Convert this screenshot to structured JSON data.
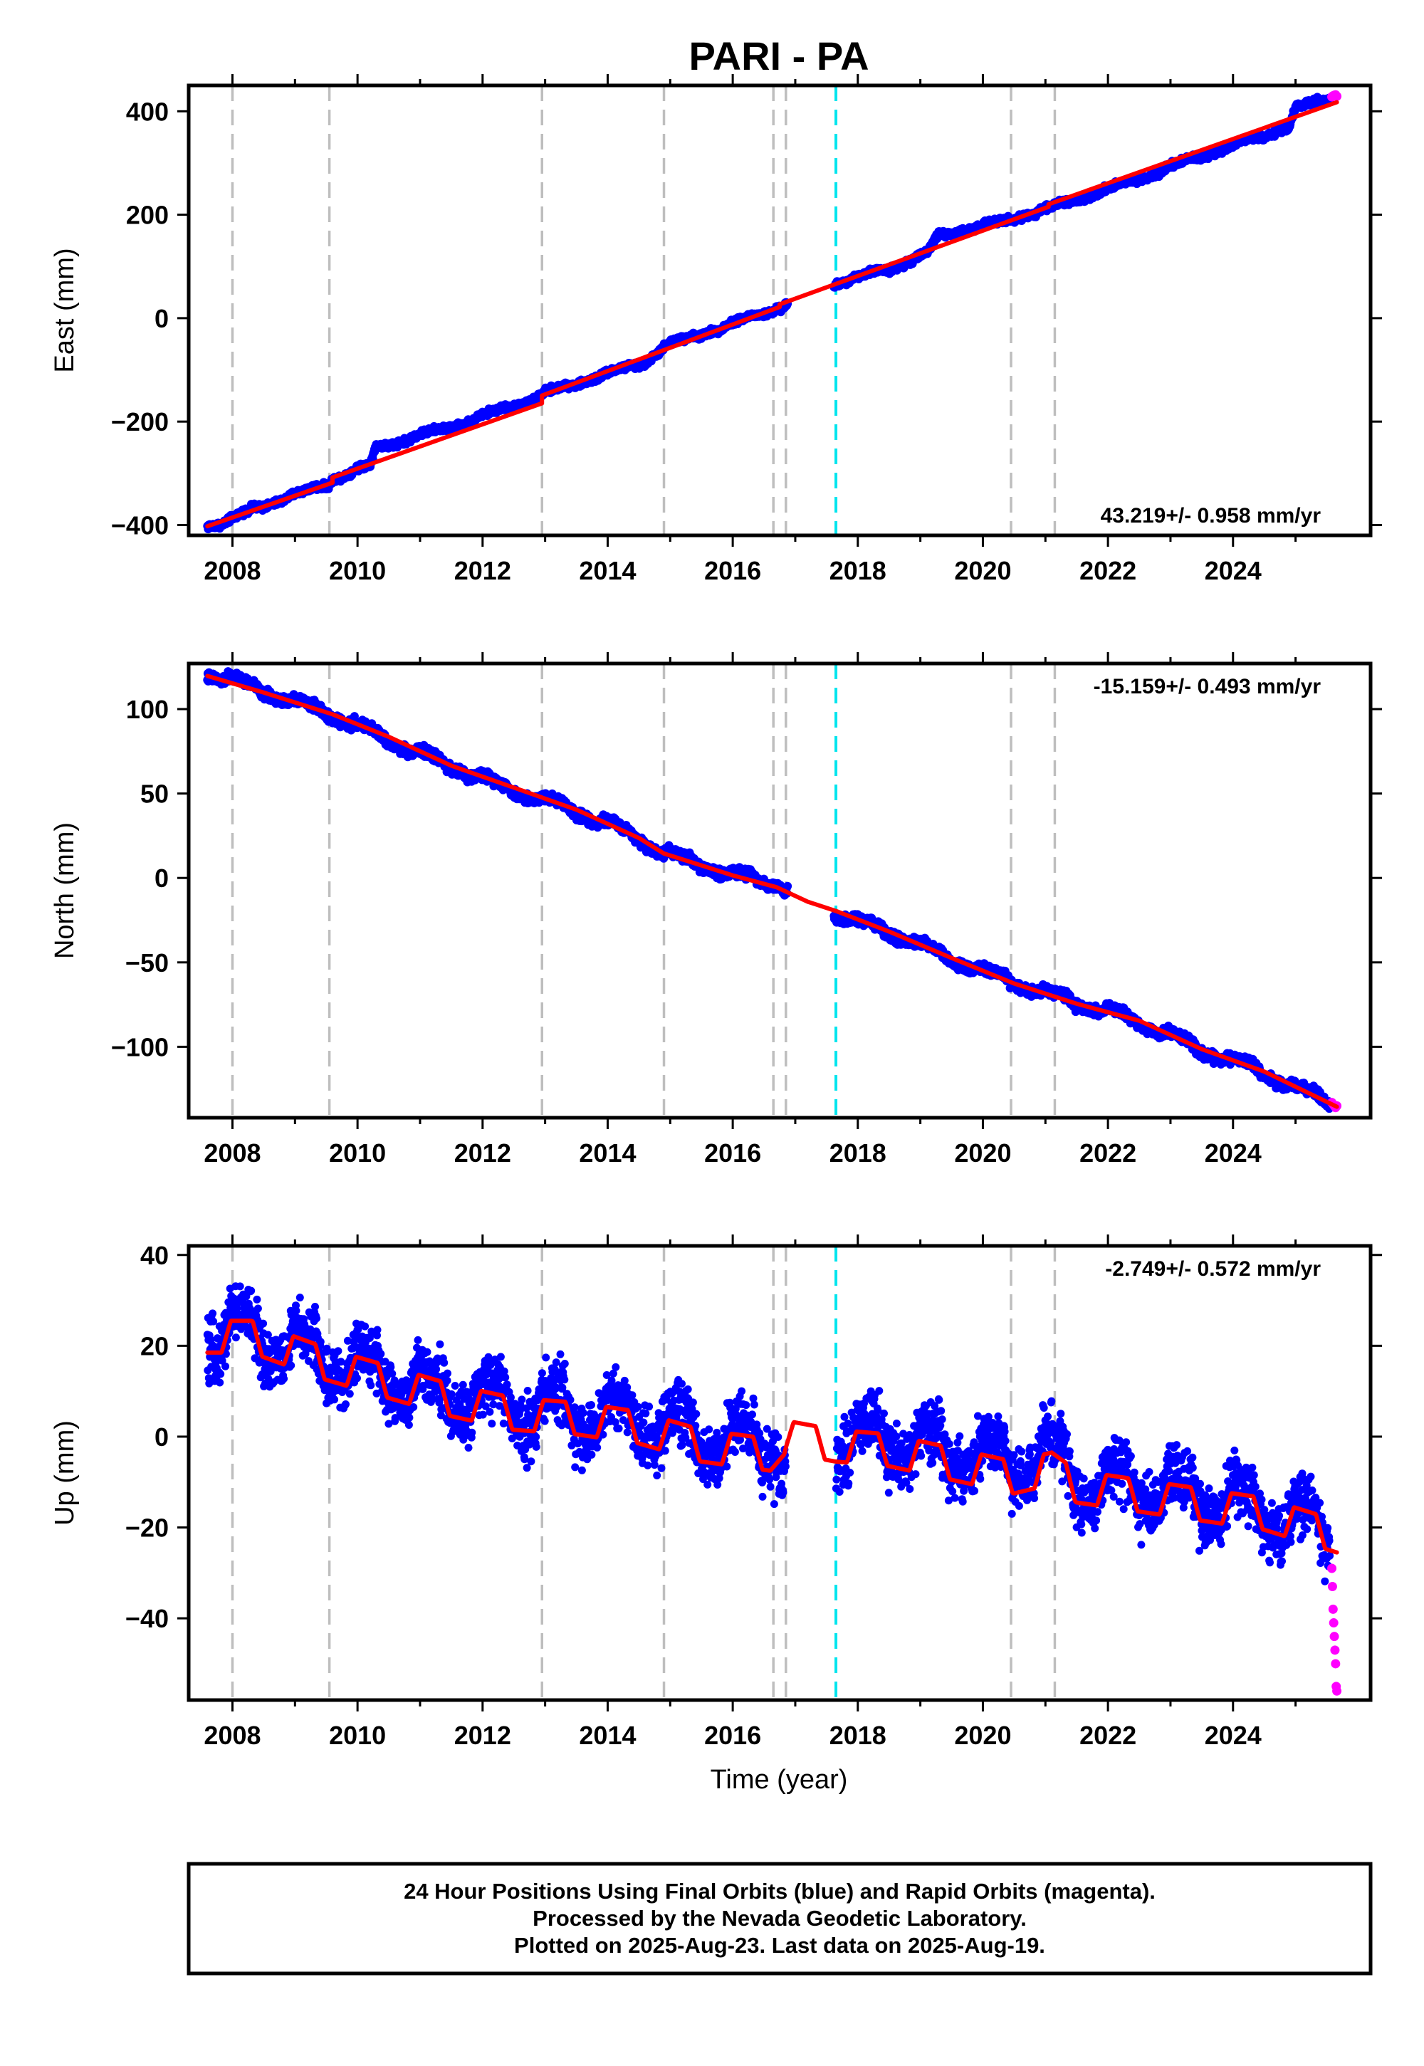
{
  "title": "PARI - PA",
  "xlabel": "Time (year)",
  "footer": [
    "24 Hour Positions Using Final Orbits (blue) and Rapid Orbits (magenta).",
    "Processed by the Nevada Geodetic Laboratory.",
    "Plotted on 2025-Aug-23. Last data on 2025-Aug-19."
  ],
  "colors": {
    "final_orbits": "#0000ff",
    "rapid_orbits": "#ff00ff",
    "model_fit": "#ff0000",
    "step_event": "#bebebe",
    "equipment_change": "#00e5ee"
  },
  "chart_data": [
    {
      "type": "scatter",
      "component": "east",
      "ylabel": "East (mm)",
      "rate": "43.219+/- 0.958 mm/yr",
      "rate_position": "bottom-right",
      "xlim": [
        2007.3,
        2026.2
      ],
      "ylim": [
        -420,
        450
      ],
      "x_ticks": [
        2008,
        2010,
        2012,
        2014,
        2016,
        2018,
        2020,
        2022,
        2024
      ],
      "y_ticks": [
        -400,
        -200,
        0,
        200,
        400
      ],
      "y_tick_labels": [
        "−400",
        "−200",
        "0",
        "200",
        "400"
      ],
      "series": [
        {
          "role": "final_orbits",
          "x_range": [
            2007.6,
            2025.55
          ],
          "trend": [
            [
              2007.6,
              -400
            ],
            [
              2007.9,
              -395
            ],
            [
              2008.3,
              -370
            ],
            [
              2009.55,
              -320
            ],
            [
              2009.6,
              -310
            ],
            [
              2010.2,
              -285
            ],
            [
              2010.3,
              -250
            ],
            [
              2011.5,
              -210
            ],
            [
              2012.95,
              -150
            ],
            [
              2013.0,
              -145
            ],
            [
              2014.6,
              -85
            ],
            [
              2014.9,
              -55
            ],
            [
              2016.75,
              20
            ],
            [
              2016.85,
              28
            ],
            [
              2017.6,
              65
            ],
            [
              2018.6,
              100
            ],
            [
              2019.1,
              125
            ],
            [
              2019.3,
              160
            ],
            [
              2020.4,
              190
            ],
            [
              2021.4,
              225
            ],
            [
              2022.5,
              270
            ],
            [
              2023.4,
              310
            ],
            [
              2024.4,
              350
            ],
            [
              2024.9,
              370
            ],
            [
              2025.0,
              405
            ],
            [
              2025.55,
              425
            ]
          ],
          "jitter": 5,
          "seasonal": 3
        },
        {
          "role": "rapid_orbits",
          "x": [
            2025.58,
            2025.6,
            2025.62,
            2025.64,
            2025.66
          ],
          "y": [
            428,
            430,
            431,
            432,
            429
          ]
        }
      ],
      "model": [
        [
          2007.6,
          -402
        ],
        [
          2009.6,
          -318
        ],
        [
          2009.6,
          -308
        ],
        [
          2012.95,
          -165
        ],
        [
          2012.95,
          -150
        ],
        [
          2016.75,
          22
        ],
        [
          2016.75,
          27
        ],
        [
          2021.05,
          215
        ],
        [
          2021.05,
          220
        ],
        [
          2025.66,
          418
        ]
      ],
      "event_lines": [
        {
          "x": 2008.0,
          "kind": "step_event"
        },
        {
          "x": 2009.55,
          "kind": "step_event"
        },
        {
          "x": 2012.95,
          "kind": "step_event"
        },
        {
          "x": 2014.9,
          "kind": "step_event"
        },
        {
          "x": 2016.65,
          "kind": "step_event"
        },
        {
          "x": 2016.85,
          "kind": "step_event"
        },
        {
          "x": 2017.65,
          "kind": "equipment_change"
        },
        {
          "x": 2020.45,
          "kind": "step_event"
        },
        {
          "x": 2021.15,
          "kind": "step_event"
        }
      ]
    },
    {
      "type": "scatter",
      "component": "north",
      "ylabel": "North (mm)",
      "rate": "-15.159+/- 0.493 mm/yr",
      "rate_position": "top-right",
      "xlim": [
        2007.3,
        2026.2
      ],
      "ylim": [
        -142,
        127
      ],
      "x_ticks": [
        2008,
        2010,
        2012,
        2014,
        2016,
        2018,
        2020,
        2022,
        2024
      ],
      "y_ticks": [
        -100,
        -50,
        0,
        50,
        100
      ],
      "y_tick_labels": [
        "−100",
        "−50",
        "0",
        "50",
        "100"
      ],
      "series": [
        {
          "role": "final_orbits",
          "x_range": [
            2007.6,
            2025.55
          ],
          "trend": [
            [
              2007.6,
              121
            ],
            [
              2008.0,
              117
            ],
            [
              2009.5,
              98
            ],
            [
              2010.3,
              85
            ],
            [
              2011.5,
              66
            ],
            [
              2012.5,
              52
            ],
            [
              2013.5,
              40
            ],
            [
              2014.5,
              24
            ],
            [
              2014.9,
              15
            ],
            [
              2016.0,
              2
            ],
            [
              2016.7,
              -3
            ],
            [
              2017.65,
              -22
            ],
            [
              2018.5,
              -32
            ],
            [
              2019.5,
              -48
            ],
            [
              2020.5,
              -62
            ],
            [
              2021.5,
              -74
            ],
            [
              2022.5,
              -85
            ],
            [
              2023.5,
              -102
            ],
            [
              2024.5,
              -115
            ],
            [
              2025.0,
              -125
            ],
            [
              2025.55,
              -132
            ]
          ],
          "jitter": 2.5,
          "seasonal": 2
        },
        {
          "role": "rapid_orbits",
          "x": [
            2025.58,
            2025.6,
            2025.62,
            2025.64,
            2025.66
          ],
          "y": [
            -133,
            -134,
            -135,
            -136,
            -135
          ]
        }
      ],
      "model": [
        [
          2007.6,
          120
        ],
        [
          2008.5,
          110
        ],
        [
          2009.6,
          97
        ],
        [
          2010.5,
          84
        ],
        [
          2011.5,
          66
        ],
        [
          2012.5,
          54
        ],
        [
          2013.5,
          40
        ],
        [
          2014.5,
          24
        ],
        [
          2014.9,
          14
        ],
        [
          2016.0,
          2
        ],
        [
          2016.7,
          -5
        ],
        [
          2017.2,
          -14
        ],
        [
          2017.65,
          -20
        ],
        [
          2018.5,
          -32
        ],
        [
          2019.5,
          -47
        ],
        [
          2020.5,
          -63
        ],
        [
          2021.5,
          -74
        ],
        [
          2022.5,
          -85
        ],
        [
          2023.5,
          -101
        ],
        [
          2024.5,
          -115
        ],
        [
          2025.66,
          -135
        ]
      ],
      "event_lines": [
        {
          "x": 2008.0,
          "kind": "step_event"
        },
        {
          "x": 2009.55,
          "kind": "step_event"
        },
        {
          "x": 2012.95,
          "kind": "step_event"
        },
        {
          "x": 2014.9,
          "kind": "step_event"
        },
        {
          "x": 2016.65,
          "kind": "step_event"
        },
        {
          "x": 2016.85,
          "kind": "step_event"
        },
        {
          "x": 2017.65,
          "kind": "equipment_change"
        },
        {
          "x": 2020.45,
          "kind": "step_event"
        },
        {
          "x": 2021.15,
          "kind": "step_event"
        }
      ]
    },
    {
      "type": "scatter",
      "component": "up",
      "ylabel": "Up (mm)",
      "rate": "-2.749+/- 0.572 mm/yr",
      "rate_position": "top-right",
      "xlim": [
        2007.3,
        2026.2
      ],
      "ylim": [
        -58,
        42
      ],
      "x_ticks": [
        2008,
        2010,
        2012,
        2014,
        2016,
        2018,
        2020,
        2022,
        2024
      ],
      "y_ticks": [
        -40,
        -20,
        0,
        20,
        40
      ],
      "y_tick_labels": [
        "−40",
        "−20",
        "0",
        "20",
        "40"
      ],
      "series": [
        {
          "role": "final_orbits",
          "x_range": [
            2007.6,
            2025.55
          ],
          "gap": [
            2016.85,
            2017.65
          ],
          "trend": [
            [
              2007.6,
              22
            ],
            [
              2008.0,
              24
            ],
            [
              2009.5,
              17
            ],
            [
              2010.5,
              13
            ],
            [
              2011.5,
              9
            ],
            [
              2012.5,
              7
            ],
            [
              2013.5,
              5
            ],
            [
              2014.5,
              4
            ],
            [
              2015.5,
              0
            ],
            [
              2016.5,
              -2
            ],
            [
              2016.8,
              -3
            ],
            [
              2017.65,
              0
            ],
            [
              2018.5,
              -1
            ],
            [
              2019.5,
              -4
            ],
            [
              2020.5,
              -6
            ],
            [
              2021.1,
              -3
            ],
            [
              2021.5,
              -10
            ],
            [
              2022.5,
              -11
            ],
            [
              2023.5,
              -14
            ],
            [
              2024.5,
              -16
            ],
            [
              2025.55,
              -20
            ]
          ],
          "jitter": 5.5,
          "seasonal": 4
        },
        {
          "role": "rapid_orbits",
          "x": [
            2025.58,
            2025.59,
            2025.6,
            2025.61,
            2025.62,
            2025.63,
            2025.64,
            2025.65,
            2025.66
          ],
          "y": [
            -29,
            -33,
            -38,
            -41,
            -44,
            -47,
            -50,
            -55,
            -56
          ]
        }
      ],
      "model": {
        "segments": [
          [
            2007.6,
            2009.55
          ],
          [
            2009.55,
            2012.95
          ],
          [
            2012.95,
            2016.85
          ],
          [
            2016.85,
            2021.15
          ],
          [
            2021.15,
            2025.66
          ]
        ],
        "trend": [
          [
            2007.6,
            22
          ],
          [
            2008.3,
            22
          ],
          [
            2009.5,
            16
          ],
          [
            2010.5,
            12
          ],
          [
            2011.5,
            8
          ],
          [
            2012.5,
            5
          ],
          [
            2013.5,
            4
          ],
          [
            2014.5,
            2
          ],
          [
            2015.5,
            -2
          ],
          [
            2016.6,
            -4
          ],
          [
            2016.85,
            0
          ],
          [
            2017.65,
            -2
          ],
          [
            2018.5,
            -3
          ],
          [
            2019.5,
            -6
          ],
          [
            2020.5,
            -9
          ],
          [
            2021.1,
            -7
          ],
          [
            2021.5,
            -11
          ],
          [
            2022.5,
            -13
          ],
          [
            2023.5,
            -15
          ],
          [
            2024.5,
            -17
          ],
          [
            2025.66,
            -22
          ]
        ],
        "seasonal_amplitude": 3.5
      },
      "event_lines": [
        {
          "x": 2008.0,
          "kind": "step_event"
        },
        {
          "x": 2009.55,
          "kind": "step_event"
        },
        {
          "x": 2012.95,
          "kind": "step_event"
        },
        {
          "x": 2014.9,
          "kind": "step_event"
        },
        {
          "x": 2016.65,
          "kind": "step_event"
        },
        {
          "x": 2016.85,
          "kind": "step_event"
        },
        {
          "x": 2017.65,
          "kind": "equipment_change"
        },
        {
          "x": 2020.45,
          "kind": "step_event"
        },
        {
          "x": 2021.15,
          "kind": "step_event"
        }
      ]
    }
  ]
}
